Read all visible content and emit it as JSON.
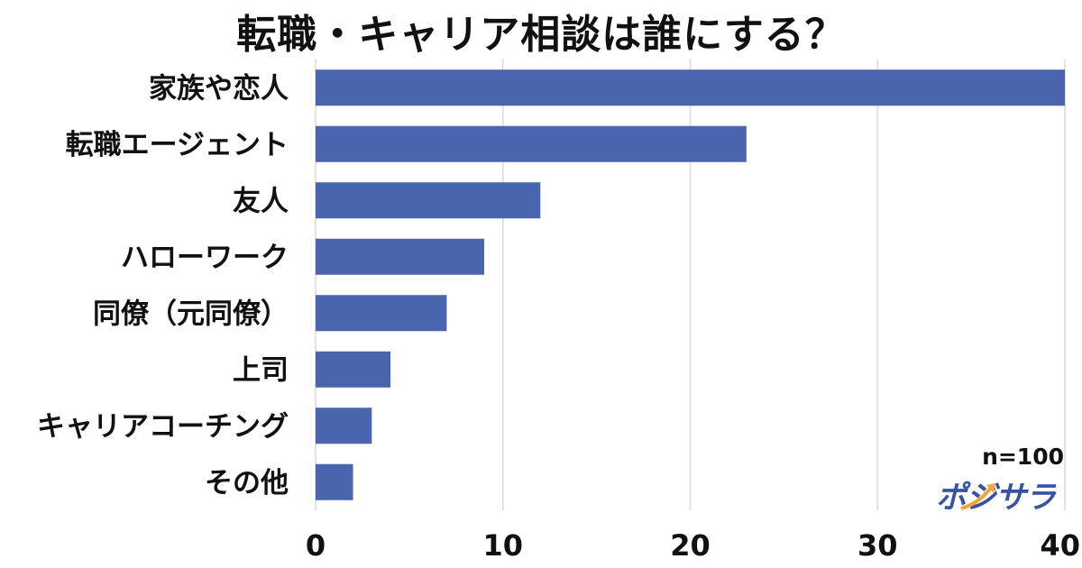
{
  "title": "転職・キャリア相談は誰にする？",
  "sample_note": "n=100",
  "brand": "ポジサラ",
  "colors": {
    "bar": "#4865ae",
    "grid": "#d9d9d9",
    "logo": "#3553a0",
    "logo_accent": "#f2a33a"
  },
  "chart_data": {
    "type": "bar",
    "orientation": "horizontal",
    "title": "転職・キャリア相談は誰にする？",
    "categories": [
      "家族や恋人",
      "転職エージェント",
      "友人",
      "ハローワーク",
      "同僚（元同僚）",
      "上司",
      "キャリアコーチング",
      "その他"
    ],
    "values": [
      40,
      23,
      12,
      9,
      7,
      4,
      3,
      2
    ],
    "xlim": [
      0,
      40
    ],
    "xticks": [
      0,
      10,
      20,
      30,
      40
    ],
    "xlabel": "",
    "ylabel": "",
    "grid": "vertical"
  }
}
